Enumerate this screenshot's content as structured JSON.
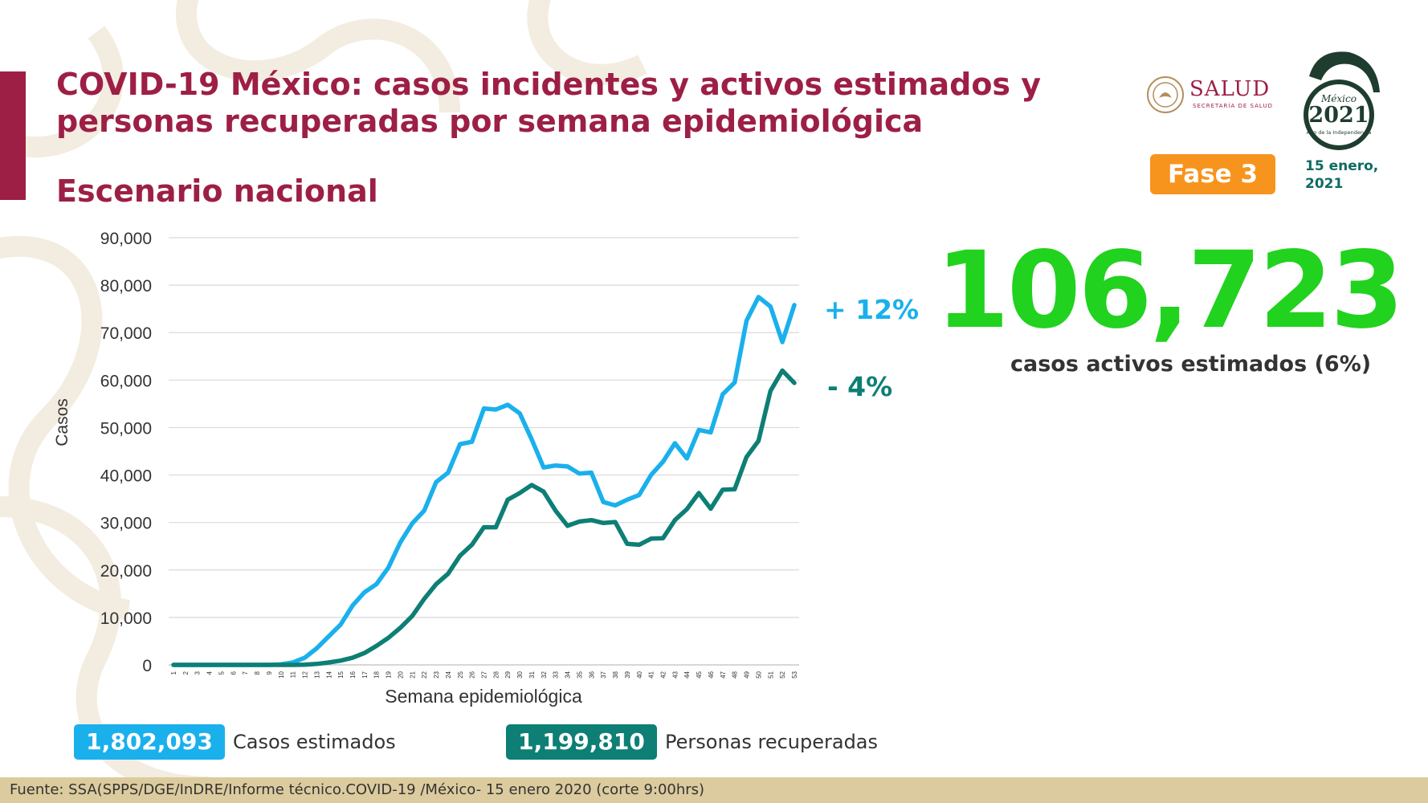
{
  "header": {
    "title": "COVID-19 México: casos incidentes y activos estimados y personas recuperadas por semana epidemiológica",
    "subtitle": "Escenario nacional",
    "phase": "Fase 3",
    "date": "15 enero, 2021"
  },
  "logos": {
    "salud": "SALUD",
    "salud_sub": "SECRETARÍA DE SALUD",
    "year_logo_top": "México",
    "year_logo_year": "2021",
    "year_logo_sub": "Año de la Independencia"
  },
  "highlight": {
    "active_cases": "106,723",
    "active_caption": "casos activos estimados (6%)",
    "pct_up": "+ 12%",
    "pct_down": "- 4%"
  },
  "stats": {
    "cases_value": "1,802,093",
    "cases_label": "Casos estimados",
    "recovered_value": "1,199,810",
    "recovered_label": "Personas recuperadas"
  },
  "footer": {
    "source": "Fuente: SSA(SPPS/DGE/InDRE/Informe técnico.COVID-19 /México- 15 enero 2020 (corte 9:00hrs)"
  },
  "colors": {
    "brand": "#9d1f45",
    "cases": "#1ab0ec",
    "recovered": "#0d7f75",
    "highlight": "#21d21f",
    "phase": "#f7941d"
  },
  "chart_data": {
    "type": "line",
    "xlabel": "Semana epidemiológica",
    "ylabel": "Casos",
    "ylim": [
      0,
      90000
    ],
    "yticks": [
      0,
      10000,
      20000,
      30000,
      40000,
      50000,
      60000,
      70000,
      80000,
      90000
    ],
    "ytick_labels": [
      "0",
      "10,000",
      "20,000",
      "30,000",
      "40,000",
      "50,000",
      "60,000",
      "70,000",
      "80,000",
      "90,000"
    ],
    "grid": true,
    "x": [
      1,
      2,
      3,
      4,
      5,
      6,
      7,
      8,
      9,
      10,
      11,
      12,
      13,
      14,
      15,
      16,
      17,
      18,
      19,
      20,
      21,
      22,
      23,
      24,
      25,
      26,
      27,
      28,
      29,
      30,
      31,
      32,
      33,
      34,
      35,
      36,
      37,
      38,
      39,
      40,
      41,
      42,
      43,
      44,
      45,
      46,
      47,
      48,
      49,
      50,
      51,
      52,
      53
    ],
    "series": [
      {
        "color": "#1ab0ec",
        "values": [
          0,
          0,
          0,
          0,
          0,
          0,
          0,
          0,
          0,
          100,
          500,
          1500,
          3500,
          6000,
          8500,
          12500,
          15300,
          17000,
          20500,
          25800,
          29800,
          32500,
          38500,
          40500,
          46500,
          47000,
          54000,
          53800,
          54800,
          53000,
          47500,
          41600,
          42000,
          41800,
          40300,
          40500,
          34300,
          33600,
          34800,
          35800,
          40000,
          42800,
          46700,
          43500,
          49500,
          49000,
          57000,
          59500,
          72500,
          77500,
          75500,
          68000,
          75800
        ]
      },
      {
        "color": "#0d7f75",
        "values": [
          0,
          0,
          0,
          0,
          0,
          0,
          0,
          0,
          0,
          0,
          0,
          50,
          200,
          500,
          900,
          1500,
          2500,
          4000,
          5700,
          7800,
          10300,
          13900,
          17000,
          19200,
          23000,
          25300,
          29000,
          29000,
          34800,
          36200,
          37900,
          36500,
          32500,
          29300,
          30200,
          30500,
          29900,
          30100,
          25500,
          25300,
          26600,
          26700,
          30500,
          32800,
          36200,
          32900,
          36900,
          37000,
          43800,
          47200,
          57700,
          62000,
          59400
        ]
      }
    ]
  }
}
